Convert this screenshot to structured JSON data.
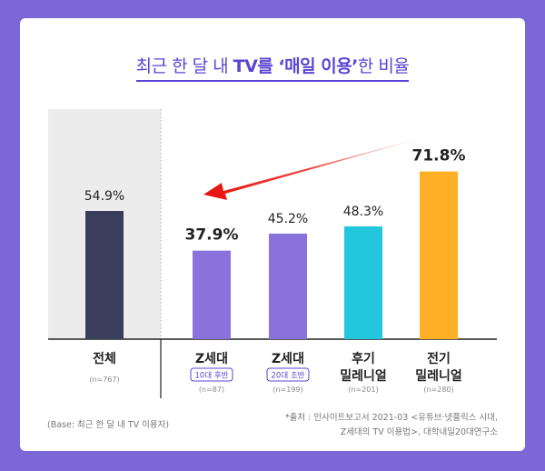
{
  "title": {
    "part1": "최근 한 달 내 ",
    "bold": "TV를 ‘매일 이용’",
    "part2": "한 비율"
  },
  "chart_data": {
    "type": "bar",
    "categories": [
      "전체",
      "Z세대",
      "Z세대",
      "후기 밀레니얼",
      "전기 밀레니얼"
    ],
    "sub_badges": [
      "",
      "10대 후반",
      "20대 초반",
      "",
      ""
    ],
    "n_labels": [
      "(n=767)",
      "(n=87)",
      "(n=199)",
      "(n=201)",
      "(n=280)"
    ],
    "values": [
      54.9,
      37.9,
      45.2,
      48.3,
      71.8
    ],
    "value_labels": [
      "54.9%",
      "37.9%",
      "45.2%",
      "48.3%",
      "71.8%"
    ],
    "ylim": [
      0,
      80
    ],
    "colors": [
      "#3a3e5c",
      "#8a72dc",
      "#8a72dc",
      "#23c7dd",
      "#fdb025"
    ],
    "arrow": {
      "from": "전기 밀레니얼",
      "to": "Z세대 10대 후반",
      "color": "#f0221c"
    }
  },
  "footnotes": {
    "base": "(Base: 최근 한 달 내 TV 이용자)",
    "source_line1": "*출처 : 인사이트보고서 2021-03 <유튜브·넷플릭스 시대,",
    "source_line2": "Z세대의 TV 이용법>, 대학내일20대연구소"
  }
}
